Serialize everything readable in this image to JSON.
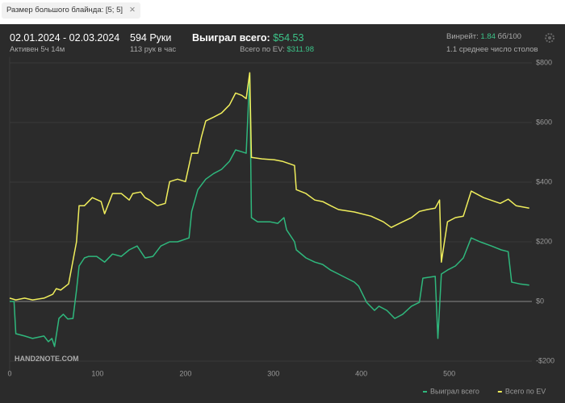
{
  "filter": {
    "label": "Размер большого блайнда: [5; 5]",
    "close": "✕"
  },
  "stats": {
    "period": "02.01.2024 - 02.03.2024",
    "active": "Активен 5ч 14м",
    "hands": "594 Руки",
    "rate": "113 рук в час",
    "won_label": "Выиграл всего:",
    "won_value": "$54.53",
    "ev_label": "Всего по EV:",
    "ev_value": "$311.98",
    "winrate_label": "Винрейт:",
    "winrate_value": "1.84",
    "winrate_unit": "бб/100",
    "tables": "1.1 среднее число столов"
  },
  "watermark": "HAND2NOTE.COM",
  "chart_data": {
    "type": "line",
    "xlim": [
      0,
      594
    ],
    "xticks": [
      0,
      100,
      200,
      300,
      400,
      500
    ],
    "ylim": [
      -250,
      820
    ],
    "yticks": [
      {
        "value": 800,
        "label": "$800"
      },
      {
        "value": 600,
        "label": "$600"
      },
      {
        "value": 400,
        "label": "$400"
      },
      {
        "value": 200,
        "label": "$200"
      },
      {
        "value": 0,
        "label": "$0"
      },
      {
        "value": -200,
        "label": "-$200"
      }
    ],
    "grid": true,
    "series": [
      {
        "name": "Выиграл всего",
        "color": "#2fb87d",
        "x": [
          0,
          5,
          7,
          17,
          26,
          39,
          44,
          48,
          51,
          56,
          61,
          66,
          72,
          76,
          79,
          85,
          90,
          99,
          108,
          117,
          127,
          136,
          145,
          154,
          163,
          172,
          182,
          191,
          204,
          207,
          214,
          223,
          232,
          241,
          250,
          257,
          264,
          269,
          273,
          275,
          282,
          296,
          305,
          312,
          315,
          324,
          326,
          337,
          347,
          356,
          365,
          374,
          392,
          397,
          406,
          415,
          420,
          429,
          438,
          447,
          457,
          466,
          470,
          484,
          487,
          491,
          498,
          507,
          516,
          525,
          535,
          548,
          559,
          567,
          571,
          580,
          591
        ],
        "values": [
          0,
          0,
          -108,
          -116,
          -124,
          -116,
          -135,
          -124,
          -151,
          -57,
          -43,
          -59,
          -57,
          38,
          119,
          146,
          151,
          151,
          132,
          159,
          151,
          173,
          186,
          146,
          151,
          186,
          200,
          200,
          213,
          302,
          375,
          410,
          429,
          443,
          470,
          508,
          502,
          497,
          761,
          281,
          267,
          267,
          262,
          281,
          240,
          200,
          173,
          146,
          132,
          124,
          105,
          92,
          65,
          51,
          -3,
          -30,
          -16,
          -30,
          -57,
          -43,
          -16,
          -3,
          78,
          84,
          -124,
          92,
          105,
          119,
          146,
          213,
          200,
          186,
          173,
          167,
          65,
          59,
          55
        ]
      },
      {
        "name": "Всего по EV",
        "color": "#f0ee5c",
        "x": [
          0,
          7,
          17,
          26,
          39,
          49,
          53,
          58,
          67,
          76,
          79,
          85,
          94,
          104,
          108,
          117,
          127,
          136,
          140,
          149,
          154,
          159,
          168,
          177,
          182,
          191,
          200,
          207,
          214,
          218,
          223,
          232,
          241,
          250,
          257,
          264,
          269,
          273,
          275,
          287,
          301,
          310,
          324,
          326,
          337,
          347,
          356,
          365,
          374,
          392,
          411,
          425,
          434,
          447,
          457,
          466,
          475,
          484,
          489,
          491,
          498,
          507,
          516,
          525,
          539,
          558,
          567,
          576,
          591
        ],
        "values": [
          11,
          5,
          11,
          5,
          11,
          24,
          43,
          38,
          59,
          200,
          321,
          321,
          348,
          335,
          294,
          362,
          362,
          340,
          362,
          367,
          348,
          340,
          321,
          329,
          402,
          410,
          402,
          497,
          497,
          551,
          605,
          618,
          632,
          659,
          699,
          691,
          680,
          767,
          483,
          478,
          475,
          470,
          456,
          375,
          362,
          340,
          335,
          321,
          308,
          300,
          286,
          267,
          248,
          267,
          281,
          302,
          308,
          313,
          340,
          132,
          267,
          281,
          286,
          370,
          348,
          329,
          343,
          321,
          313
        ]
      }
    ]
  }
}
